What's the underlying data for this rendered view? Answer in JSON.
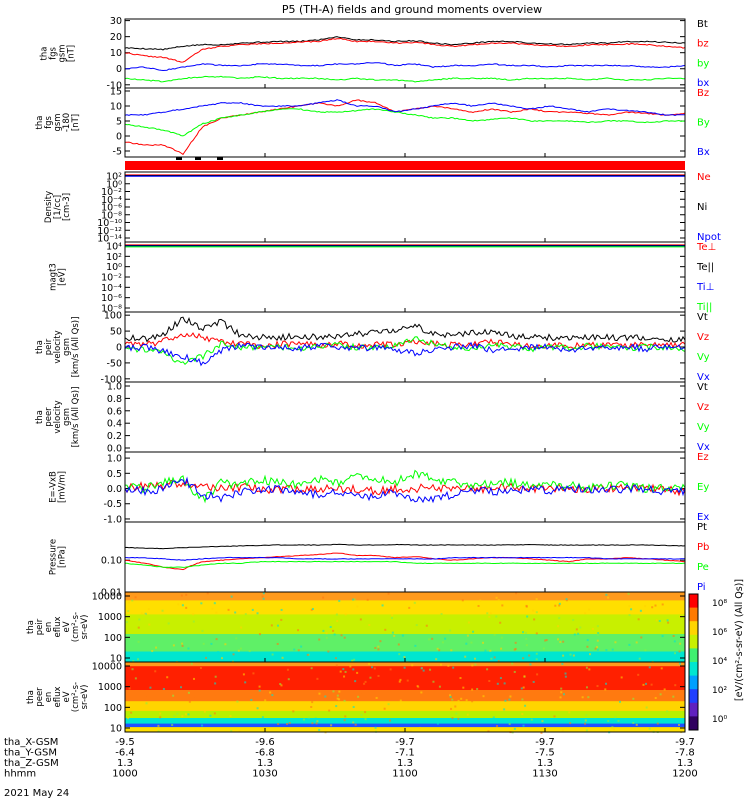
{
  "title": "P5 (TH-A) fields and ground moments overview",
  "date": "2021 May 24",
  "chart_data": [
    {
      "type": "line",
      "ylabel": [
        "tha",
        "fgs",
        "gsm",
        "[nT]"
      ],
      "ylim": [
        -12,
        31
      ],
      "yticks": [
        "30",
        "20",
        "10",
        "0",
        "-10"
      ],
      "ytick_values": [
        30,
        20,
        10,
        0,
        -10
      ],
      "series": [
        {
          "name": "Bt",
          "color": "#000000",
          "values": [
            13,
            12.5,
            12,
            14,
            15,
            15,
            16,
            16.5,
            17,
            17,
            18,
            20,
            18,
            18,
            17,
            17.5,
            16,
            15,
            16,
            17,
            17,
            16,
            15.5,
            15,
            16,
            16,
            17,
            17,
            16.5,
            16
          ]
        },
        {
          "name": "bz",
          "color": "#ff0000",
          "values": [
            10,
            8,
            7,
            4,
            12,
            14,
            15,
            15.5,
            16,
            16.5,
            17,
            19,
            17,
            17,
            16,
            16.5,
            15,
            14,
            15,
            16,
            16,
            15,
            14.5,
            14,
            15,
            15,
            15.5,
            15,
            14,
            13
          ]
        },
        {
          "name": "by",
          "color": "#00ff00",
          "values": [
            -6,
            -7,
            -8,
            -6,
            -5,
            -5,
            -6,
            -5,
            -6,
            -6,
            -6,
            -7,
            -6,
            -7,
            -7,
            -8,
            -7,
            -6,
            -6,
            -6,
            -7,
            -6,
            -6,
            -6,
            -7,
            -6,
            -7,
            -7,
            -6,
            -6
          ]
        },
        {
          "name": "bx",
          "color": "#0000ff",
          "values": [
            0,
            1,
            -1,
            1,
            3,
            2,
            2,
            3,
            3,
            2,
            2,
            3,
            3,
            4,
            2,
            3,
            1,
            2,
            2,
            3,
            2,
            2,
            1,
            2,
            2,
            2,
            2,
            1,
            1,
            2
          ]
        }
      ]
    },
    {
      "type": "line",
      "ylabel": [
        "tha",
        "fgs",
        "gsm",
        "-180",
        "[nT]"
      ],
      "ylim": [
        -7,
        16
      ],
      "yticks": [
        "15",
        "10",
        "5",
        "0",
        "-5"
      ],
      "ytick_values": [
        15,
        10,
        5,
        0,
        -5
      ],
      "series": [
        {
          "name": "Bz",
          "color": "#ff0000",
          "values": [
            -2,
            -3,
            -3,
            -6,
            3,
            6,
            7,
            8,
            9,
            10,
            11,
            10,
            12,
            11,
            8,
            9,
            10,
            9,
            8,
            9,
            8,
            9,
            8,
            8,
            7.5,
            7,
            8,
            7.5,
            7,
            7.5
          ]
        },
        {
          "name": "By",
          "color": "#00ff00",
          "values": [
            4,
            3,
            2,
            0,
            4,
            6,
            7,
            8,
            9,
            9,
            8,
            8,
            8.5,
            9,
            8,
            7,
            6,
            6,
            5,
            5.5,
            6,
            5,
            5,
            5,
            4.5,
            5,
            5,
            4.5,
            5,
            5
          ]
        },
        {
          "name": "Bx",
          "color": "#0000ff",
          "values": [
            7,
            7,
            8,
            9,
            10,
            11,
            11,
            10,
            10,
            10,
            11,
            12,
            10,
            10,
            8,
            9,
            10,
            11,
            10,
            11,
            10,
            9,
            10,
            9,
            8,
            9,
            8.5,
            8,
            7,
            7
          ]
        }
      ]
    },
    {
      "type": "line",
      "scale": "log",
      "ylabel": [
        "Density",
        "[1/cc]",
        "[cm-3]"
      ],
      "yticks": [
        "10²",
        "10⁰",
        "10⁻²",
        "10⁻⁴",
        "10⁻⁶",
        "10⁻⁸",
        "10⁻¹⁰",
        "10⁻¹²",
        "10⁻¹⁴"
      ],
      "series_labels": [
        {
          "name": "Ne",
          "color": "#ff0000"
        },
        {
          "name": "Ni",
          "color": "#000000"
        },
        {
          "name": "Npot",
          "color": "#0000ff"
        }
      ]
    },
    {
      "type": "line",
      "scale": "log",
      "ylabel": [
        "magt3",
        "[eV]"
      ],
      "yticks": [
        "10⁴",
        "10²",
        "10⁰",
        "10⁻²",
        "10⁻⁴",
        "10⁻⁶",
        "10⁻⁸"
      ],
      "series_labels": [
        {
          "name": "Te⊥",
          "color": "#ff0000"
        },
        {
          "name": "Te||",
          "color": "#000000"
        },
        {
          "name": "Ti⊥",
          "color": "#0000ff"
        },
        {
          "name": "Ti||",
          "color": "#00ff00"
        }
      ]
    },
    {
      "type": "line",
      "ylabel": [
        "tha",
        "peir",
        "velocity",
        "gsm",
        "[km/s (All Qs)]"
      ],
      "ylim": [
        -110,
        110
      ],
      "yticks": [
        "100",
        "50",
        "0",
        "-50",
        "-100"
      ],
      "ytick_values": [
        100,
        50,
        0,
        -50,
        -100
      ],
      "series": [
        {
          "name": "Vt",
          "color": "#000000",
          "values": [
            30,
            25,
            40,
            90,
            60,
            80,
            35,
            30,
            30,
            35,
            30,
            35,
            40,
            45,
            50,
            70,
            40,
            35,
            45,
            50,
            35,
            30,
            30,
            30,
            30,
            30,
            30,
            30,
            25,
            25
          ]
        },
        {
          "name": "Vz",
          "color": "#ff0000",
          "values": [
            10,
            5,
            20,
            40,
            30,
            15,
            10,
            5,
            8,
            10,
            5,
            10,
            5,
            8,
            10,
            20,
            10,
            5,
            10,
            15,
            8,
            5,
            5,
            5,
            5,
            5,
            5,
            5,
            5,
            5
          ]
        },
        {
          "name": "Vy",
          "color": "#00ff00",
          "values": [
            0,
            -10,
            -20,
            -50,
            -30,
            10,
            0,
            -5,
            0,
            -5,
            0,
            5,
            0,
            -5,
            5,
            30,
            10,
            0,
            -5,
            10,
            0,
            -5,
            0,
            -5,
            5,
            0,
            -5,
            0,
            0,
            -5
          ]
        },
        {
          "name": "Vx",
          "color": "#0000ff",
          "values": [
            -5,
            0,
            -15,
            -30,
            -50,
            -10,
            5,
            0,
            0,
            -5,
            5,
            0,
            -5,
            0,
            -10,
            -20,
            -5,
            0,
            5,
            -10,
            -5,
            0,
            0,
            -10,
            0,
            -5,
            0,
            -5,
            0,
            0
          ]
        }
      ]
    },
    {
      "type": "line",
      "ylabel": [
        "tha",
        "peer",
        "velocity",
        "gsm",
        "[km/s (All Qs)]"
      ],
      "yticks": [
        "1.0",
        "0.8",
        "0.6",
        "0.4",
        "0.2",
        "0.0"
      ],
      "series_labels": [
        {
          "name": "Vt",
          "color": "#000000"
        },
        {
          "name": "Vz",
          "color": "#ff0000"
        },
        {
          "name": "Vy",
          "color": "#00ff00"
        },
        {
          "name": "Vx",
          "color": "#0000ff"
        }
      ]
    },
    {
      "type": "line",
      "ylabel": [
        "E=-VxB",
        "[mV/m]"
      ],
      "ylim": [
        -1.1,
        1.2
      ],
      "yticks": [
        "1.0",
        "0.5",
        "0.0",
        "-0.5",
        "-1.0"
      ],
      "ytick_values": [
        1,
        0.5,
        0,
        -0.5,
        -1
      ],
      "series": [
        {
          "name": "Ez",
          "color": "#ff0000",
          "values": [
            0,
            0.1,
            0.1,
            0.2,
            0.1,
            0,
            0.05,
            0,
            -0.05,
            0,
            0,
            0,
            0,
            -0.1,
            0,
            0,
            0.05,
            0,
            0,
            0,
            0.05,
            0,
            0,
            0,
            0,
            0,
            0,
            0,
            -0.05,
            -0.1
          ]
        },
        {
          "name": "Ey",
          "color": "#00ff00",
          "values": [
            0.1,
            0,
            0.2,
            0.3,
            -0.4,
            0.2,
            0.1,
            0.3,
            0.2,
            0.1,
            0.3,
            0.2,
            0.4,
            0.3,
            0.2,
            0.5,
            0.3,
            0.2,
            0.1,
            0.2,
            0.2,
            0.1,
            0.1,
            0.1,
            0,
            0.1,
            0.1,
            0,
            0,
            0
          ]
        },
        {
          "name": "Ex",
          "color": "#0000ff",
          "values": [
            0,
            -0.1,
            0,
            0.3,
            -0.2,
            -0.3,
            -0.1,
            -0.1,
            0,
            -0.1,
            -0.2,
            -0.1,
            -0.2,
            -0.3,
            -0.1,
            -0.4,
            -0.3,
            -0.2,
            -0.1,
            -0.1,
            -0.1,
            0,
            -0.1,
            0,
            0,
            -0.05,
            0,
            0,
            -0.1,
            -0.1
          ]
        }
      ]
    },
    {
      "type": "line",
      "scale": "log",
      "ylabel": [
        "Pressure",
        "[nPa]"
      ],
      "ylim_log": [
        -2,
        0.2
      ],
      "yticks": [
        "0.10",
        "0.01"
      ],
      "ytick_values": [
        0.1,
        0.01
      ],
      "series": [
        {
          "name": "Pt",
          "color": "#000000",
          "values": [
            0.25,
            0.24,
            0.23,
            0.25,
            0.26,
            0.27,
            0.28,
            0.29,
            0.3,
            0.3,
            0.3,
            0.31,
            0.3,
            0.3,
            0.31,
            0.3,
            0.3,
            0.3,
            0.3,
            0.3,
            0.3,
            0.31,
            0.3,
            0.3,
            0.3,
            0.3,
            0.3,
            0.3,
            0.29,
            0.28
          ]
        },
        {
          "name": "Pb",
          "color": "#ff0000",
          "values": [
            0.1,
            0.08,
            0.06,
            0.05,
            0.09,
            0.1,
            0.11,
            0.12,
            0.13,
            0.14,
            0.15,
            0.17,
            0.14,
            0.14,
            0.12,
            0.13,
            0.11,
            0.1,
            0.11,
            0.12,
            0.12,
            0.11,
            0.1,
            0.09,
            0.11,
            0.11,
            0.12,
            0.11,
            0.1,
            0.09
          ]
        },
        {
          "name": "Pe",
          "color": "#00ff00",
          "values": [
            0.08,
            0.07,
            0.06,
            0.06,
            0.07,
            0.08,
            0.08,
            0.09,
            0.09,
            0.09,
            0.09,
            0.09,
            0.09,
            0.09,
            0.09,
            0.08,
            0.08,
            0.08,
            0.08,
            0.08,
            0.08,
            0.08,
            0.08,
            0.08,
            0.08,
            0.08,
            0.08,
            0.08,
            0.08,
            0.08
          ]
        },
        {
          "name": "Pi",
          "color": "#0000ff",
          "values": [
            0.12,
            0.12,
            0.11,
            0.1,
            0.11,
            0.12,
            0.12,
            0.12,
            0.12,
            0.11,
            0.11,
            0.11,
            0.11,
            0.11,
            0.11,
            0.11,
            0.11,
            0.12,
            0.12,
            0.12,
            0.12,
            0.12,
            0.12,
            0.12,
            0.12,
            0.11,
            0.11,
            0.11,
            0.11,
            0.11
          ]
        }
      ]
    },
    {
      "type": "heatmap",
      "ylabel": [
        "tha",
        "peir",
        "en",
        "eflux",
        "eV",
        "(cm²-s-",
        "sr-eV)"
      ],
      "yticks": [
        "10000",
        "1000",
        "100",
        "10"
      ],
      "bands": [
        {
          "color": "#ff9a1c",
          "fraction": 0.12
        },
        {
          "color": "#ffdf00",
          "fraction": 0.2
        },
        {
          "color": "#c8f000",
          "fraction": 0.28
        },
        {
          "color": "#5ff067",
          "fraction": 0.25
        },
        {
          "color": "#00e6d0",
          "fraction": 0.15
        }
      ]
    },
    {
      "type": "heatmap",
      "ylabel": [
        "tha",
        "peer",
        "en",
        "eflux",
        "eV",
        "(cm²-s-",
        "sr-eV)"
      ],
      "yticks": [
        "10000",
        "1000",
        "100",
        "10"
      ],
      "bands": [
        {
          "color": "#ff9a1c",
          "fraction": 0.06
        },
        {
          "color": "#ff2000",
          "fraction": 0.34
        },
        {
          "color": "#ff7a10",
          "fraction": 0.16
        },
        {
          "color": "#ffd400",
          "fraction": 0.14
        },
        {
          "color": "#b8f000",
          "fraction": 0.1
        },
        {
          "color": "#00e6d0",
          "fraction": 0.08
        },
        {
          "color": "#2050ff",
          "fraction": 0.05
        },
        {
          "color": "#ffdf00",
          "fraction": 0.07
        }
      ]
    }
  ],
  "colorbar": {
    "ticks": [
      "10⁸",
      "10⁶",
      "10⁴",
      "10²",
      "10⁰"
    ],
    "label": "[eV/(cm²-s-sr-eV) (All Qs)]"
  },
  "xaxis": {
    "row_labels": [
      "tha_X-GSM",
      "tha_Y-GSM",
      "tha_Z-GSM",
      "hhmm"
    ],
    "columns": [
      [
        "-9.5",
        "-6.4",
        "1.3",
        "1000"
      ],
      [
        "-9.6",
        "-6.8",
        "1.3",
        "1030"
      ],
      [
        "-9.7",
        "-7.1",
        "1.3",
        "1100"
      ],
      [
        "-9.7",
        "-7.5",
        "1.3",
        "1130"
      ],
      [
        "-9.7",
        "-7.8",
        "1.3",
        "1200"
      ]
    ]
  }
}
